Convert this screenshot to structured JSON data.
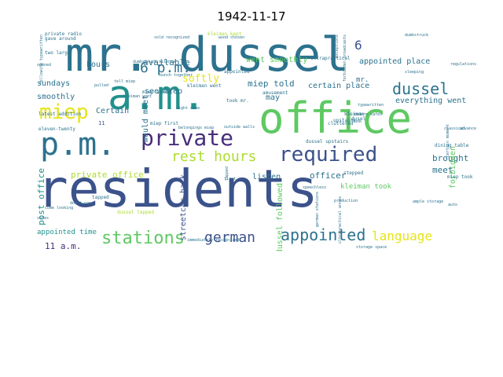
{
  "title": "1942-11-17",
  "colors": {
    "dark_purple": "#472d7b",
    "dark_blue": "#3b528b",
    "slate": "#2c728e",
    "teal": "#21918c",
    "green": "#28ae80",
    "lime": "#5ec962",
    "yellow_green": "#addc30",
    "yellow": "#e5e419"
  },
  "words": [
    {
      "text": "residents",
      "color": "#3b528b"
    },
    {
      "text": "mr. dussel",
      "color": "#2c728e"
    },
    {
      "text": "a.m.",
      "color": "#21918c"
    },
    {
      "text": "office",
      "color": "#5ec962"
    },
    {
      "text": "p.m.",
      "color": "#2c728e"
    },
    {
      "text": "private",
      "color": "#472d7b"
    },
    {
      "text": "required",
      "color": "#3b528b"
    },
    {
      "text": "miep",
      "color": "#e5e419"
    },
    {
      "text": "stations",
      "color": "#5ec962"
    },
    {
      "text": "appointed",
      "color": "#2c728e"
    },
    {
      "text": "language",
      "color": "#e5e419"
    },
    {
      "text": "6 p.m.",
      "color": "#2c728e"
    },
    {
      "text": "rest hours",
      "color": "#addc30"
    },
    {
      "text": "dussel",
      "color": "#2c728e"
    },
    {
      "text": "german",
      "color": "#3b528b"
    },
    {
      "text": "miep told",
      "color": "#2c728e"
    },
    {
      "text": "softly",
      "color": "#e5e419"
    },
    {
      "text": "available",
      "color": "#2c728e"
    },
    {
      "text": "hours",
      "color": "#2c728e"
    },
    {
      "text": "went smoothly",
      "color": "#5ec962"
    },
    {
      "text": "appointed place",
      "color": "#2c728e"
    },
    {
      "text": "certain place",
      "color": "#2c728e"
    },
    {
      "text": "everything went",
      "color": "#2c728e"
    },
    {
      "text": "sundays",
      "color": "#2c728e"
    },
    {
      "text": "smoothly",
      "color": "#2c728e"
    },
    {
      "text": "Certain",
      "color": "#2c728e"
    },
    {
      "text": "private office",
      "color": "#addc30"
    },
    {
      "text": "officer",
      "color": "#2c728e"
    },
    {
      "text": "brought",
      "color": "#2c728e"
    },
    {
      "text": "meet",
      "color": "#2c728e"
    },
    {
      "text": "listen",
      "color": "#2c728e"
    },
    {
      "text": "may",
      "color": "#2c728e"
    },
    {
      "text": "mr.",
      "color": "#2c728e"
    },
    {
      "text": "see miep",
      "color": "#2c728e"
    },
    {
      "text": "kleiman took",
      "color": "#5ec962"
    },
    {
      "text": "appointed time",
      "color": "#21918c"
    },
    {
      "text": "11 a.m.",
      "color": "#472d7b"
    },
    {
      "text": "post office",
      "color": "#21918c"
    },
    {
      "text": "would meet",
      "color": "#2c728e"
    },
    {
      "text": "streetcar back",
      "color": "#3b528b"
    },
    {
      "text": "forbidden",
      "color": "#5ec962"
    },
    {
      "text": "dussel followed",
      "color": "#5ec962"
    },
    {
      "text": "kleiman went",
      "color": "#2c728e"
    },
    {
      "text": "latest addition",
      "color": "#2c728e"
    },
    {
      "text": "dining table",
      "color": "#2c728e"
    },
    {
      "text": "eleven-twenty",
      "color": "#2c728e"
    },
    {
      "text": "stepped",
      "color": "#2c728e"
    },
    {
      "text": "tapped",
      "color": "#2c728e"
    },
    {
      "text": "dussel upstairs",
      "color": "#2c728e"
    },
    {
      "text": "ultrapractical",
      "color": "#2c728e"
    },
    {
      "text": "miep took",
      "color": "#2c728e"
    },
    {
      "text": "6",
      "color": "#3b528b"
    },
    {
      "text": "11",
      "color": "#3b528b"
    },
    {
      "text": "kleiman kept",
      "color": "#addc30"
    },
    {
      "text": "amusement",
      "color": "#2c728e"
    },
    {
      "text": "took mr.",
      "color": "#2c728e"
    },
    {
      "text": "miep asked",
      "color": "#2c728e"
    },
    {
      "text": "miep first",
      "color": "#2c728e"
    },
    {
      "text": "dussel tapped",
      "color": "#addc30"
    },
    {
      "text": "private radio",
      "color": "#2c728e"
    },
    {
      "text": "gave around",
      "color": "#2c728e"
    },
    {
      "text": "two large",
      "color": "#2c728e"
    },
    {
      "text": "appointed",
      "color": "#2c728e"
    },
    {
      "text": "storage space",
      "color": "#2c728e"
    },
    {
      "text": "classical",
      "color": "#2c728e"
    },
    {
      "text": "advance",
      "color": "#2c728e"
    },
    {
      "text": "kleiman",
      "color": "#2c728e"
    },
    {
      "text": "dusel",
      "color": "#2c728e"
    },
    {
      "text": "upstairs",
      "color": "#2c728e"
    },
    {
      "text": "cluttered",
      "color": "#2c728e"
    },
    {
      "text": "bunk",
      "color": "#2c728e"
    },
    {
      "text": "modern safes",
      "color": "#2c728e"
    },
    {
      "text": "safes",
      "color": "#2c728e"
    },
    {
      "text": "first",
      "color": "#2c728e"
    },
    {
      "text": "regulations",
      "color": "#2c728e"
    },
    {
      "text": "dumbstruck",
      "color": "#2c728e"
    },
    {
      "text": "dumbstruck silence",
      "color": "#2c728e"
    },
    {
      "text": "bunch together",
      "color": "#2c728e"
    },
    {
      "text": "belongings miep",
      "color": "#2c728e"
    },
    {
      "text": "outside walls",
      "color": "#2c728e"
    },
    {
      "text": "night come",
      "color": "#2c728e"
    },
    {
      "text": "sold",
      "color": "#2c728e"
    },
    {
      "text": "recognized",
      "color": "#2c728e"
    },
    {
      "text": "immediately recognized",
      "color": "#2c728e"
    },
    {
      "text": "speechless",
      "color": "#2c728e"
    },
    {
      "text": "ample storage",
      "color": "#2c728e"
    },
    {
      "text": "auto",
      "color": "#2c728e"
    },
    {
      "text": "come looking",
      "color": "#2c728e"
    },
    {
      "text": "wood chosen",
      "color": "#2c728e"
    },
    {
      "text": "production",
      "color": "#2c728e"
    },
    {
      "text": "opened",
      "color": "#2c728e"
    },
    {
      "text": "sleeping",
      "color": "#2c728e"
    },
    {
      "text": "following typewritten",
      "color": "#2c728e"
    },
    {
      "text": "forbidden broadcasts",
      "color": "#2c728e"
    },
    {
      "text": "german stations",
      "color": "#2c728e"
    },
    {
      "text": "exceptions",
      "color": "#2c728e"
    },
    {
      "text": "typewritten",
      "color": "#2c728e"
    },
    {
      "text": "tell miep",
      "color": "#2c728e"
    },
    {
      "text": "pulled",
      "color": "#2c728e"
    },
    {
      "text": "don't nap",
      "color": "#2c728e"
    },
    {
      "text": "ultrapractical annex",
      "color": "#2c728e"
    },
    {
      "text": "certain moment",
      "color": "#2c728e"
    },
    {
      "text": "tapped",
      "color": "#2c728e"
    },
    {
      "text": "kleiman went",
      "color": "#2c728e"
    }
  ]
}
